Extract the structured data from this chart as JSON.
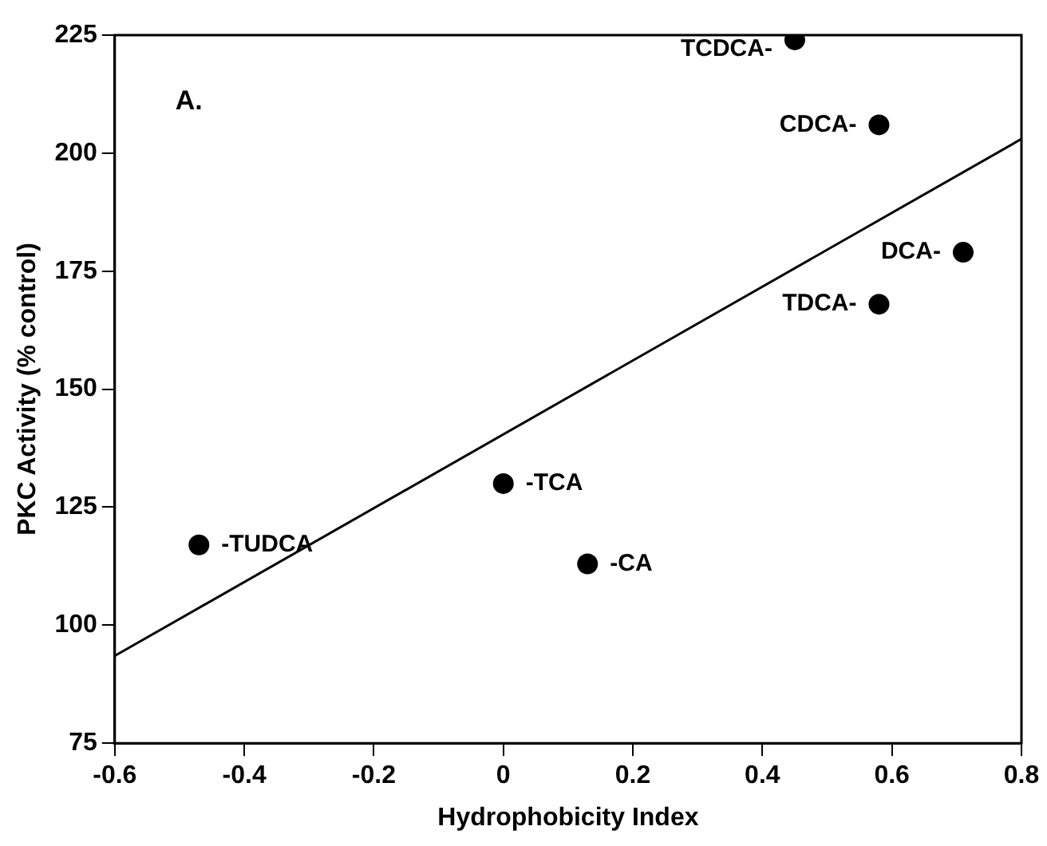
{
  "chart_data": {
    "type": "scatter",
    "xlabel": "Hydrophobicity Index",
    "ylabel": "PKC Activity (% control)",
    "xlim": [
      -0.6,
      0.8
    ],
    "xticks": [
      -0.6,
      -0.4,
      -0.2,
      0,
      0.2,
      0.4,
      0.6,
      0.8
    ],
    "ylim": [
      75,
      225
    ],
    "yticks": [
      75,
      100,
      125,
      150,
      175,
      200,
      225
    ],
    "grid": false,
    "legend": false,
    "marker": "circle",
    "series": [
      {
        "color": "#000000",
        "x": [
          -0.47,
          0,
          0.13,
          0.45,
          0.58,
          0.71,
          0.58
        ],
        "values": [
          117,
          130,
          113,
          224,
          206,
          179,
          168
        ]
      },
      {
        "type": "line",
        "color": "#000000",
        "x": [
          -0.6,
          0.8
        ],
        "values": [
          93.5,
          203
        ],
        "marker": "none",
        "line_style": "solid"
      }
    ],
    "annotations": [
      "A.",
      {
        "text": "-TUDCA",
        "x": -0.47,
        "y": 117
      },
      {
        "text": "-TCA",
        "x": 0,
        "y": 130
      },
      {
        "text": "-CA",
        "x": 0.13,
        "y": 113
      },
      {
        "text": "TCDCA-",
        "x": 0.45,
        "y": 224
      },
      {
        "text": "CDCA-",
        "x": 0.58,
        "y": 206
      },
      {
        "text": "DCA-",
        "x": 0.71,
        "y": 179
      },
      {
        "text": "TDCA-",
        "x": 0.58,
        "y": 168
      }
    ]
  }
}
